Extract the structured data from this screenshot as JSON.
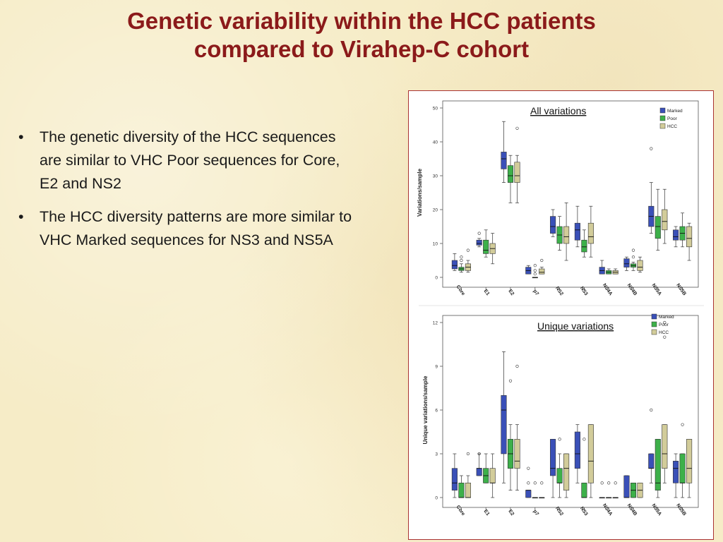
{
  "slide": {
    "title_line1": "Genetic variability within the HCC patients",
    "title_line2": "compared to Virahep-C cohort",
    "bullets": [
      "The genetic diversity of the HCC sequences are similar to VHC Poor sequences for Core, E2 and NS2",
      "The HCC diversity patterns are more similar to VHC Marked sequences for NS3 and NS5A"
    ]
  },
  "colors": {
    "title": "#8b1a1a",
    "marked": "#3a50b8",
    "poor": "#3db04a",
    "hcc": "#d2cc9a",
    "frame_border": "#aa3333"
  },
  "chart_data": [
    {
      "type": "box",
      "title": "All variations",
      "ylabel": "Variations/sample",
      "ylim": [
        0,
        50
      ],
      "yticks": [
        0,
        10,
        20,
        30,
        40,
        50
      ],
      "categories": [
        "Core",
        "E1",
        "E2",
        "p7",
        "NS2",
        "NS3",
        "NS4A",
        "NS4B",
        "NS5A",
        "NS5B"
      ],
      "legend_position": "top-right",
      "series": [
        {
          "name": "Marked",
          "boxes": [
            {
              "min": 2,
              "q1": 2.5,
              "median": 3.5,
              "q3": 5,
              "max": 7,
              "outliers": []
            },
            {
              "min": 9,
              "q1": 9.5,
              "median": 10,
              "q3": 11,
              "max": 11.5,
              "outliers": [
                13
              ]
            },
            {
              "min": 28,
              "q1": 32,
              "median": 35,
              "q3": 37,
              "max": 46,
              "outliers": []
            },
            {
              "min": 1,
              "q1": 1,
              "median": 2,
              "q3": 3,
              "max": 3.5,
              "outliers": []
            },
            {
              "min": 12,
              "q1": 13,
              "median": 15,
              "q3": 18,
              "max": 20,
              "outliers": []
            },
            {
              "min": 9,
              "q1": 11,
              "median": 14,
              "q3": 16,
              "max": 21,
              "outliers": []
            },
            {
              "min": 1,
              "q1": 1,
              "median": 2,
              "q3": 3,
              "max": 5,
              "outliers": []
            },
            {
              "min": 2,
              "q1": 3,
              "median": 4,
              "q3": 5.5,
              "max": 6,
              "outliers": []
            },
            {
              "min": 13,
              "q1": 15,
              "median": 18,
              "q3": 21,
              "max": 28,
              "outliers": [
                38
              ]
            },
            {
              "min": 9,
              "q1": 11,
              "median": 12,
              "q3": 14,
              "max": 15,
              "outliers": []
            }
          ]
        },
        {
          "name": "Poor",
          "boxes": [
            {
              "min": 1.5,
              "q1": 2,
              "median": 2.5,
              "q3": 3,
              "max": 4,
              "outliers": [
                5,
                6
              ]
            },
            {
              "min": 6,
              "q1": 7,
              "median": 8,
              "q3": 11,
              "max": 14,
              "outliers": []
            },
            {
              "min": 22,
              "q1": 28,
              "median": 30,
              "q3": 33,
              "max": 36,
              "outliers": []
            },
            {
              "min": 0,
              "q1": 0,
              "median": 0,
              "q3": 0,
              "max": 0,
              "outliers": [
                1,
                2,
                3.5
              ]
            },
            {
              "min": 8,
              "q1": 10,
              "median": 12.5,
              "q3": 15,
              "max": 18,
              "outliers": []
            },
            {
              "min": 6,
              "q1": 7.5,
              "median": 9,
              "q3": 11,
              "max": 14,
              "outliers": []
            },
            {
              "min": 1,
              "q1": 1,
              "median": 1.5,
              "q3": 2,
              "max": 2.5,
              "outliers": []
            },
            {
              "min": 2,
              "q1": 3,
              "median": 3.5,
              "q3": 4,
              "max": 4.5,
              "outliers": [
                6,
                8
              ]
            },
            {
              "min": 8,
              "q1": 11.5,
              "median": 15,
              "q3": 18,
              "max": 26,
              "outliers": []
            },
            {
              "min": 9,
              "q1": 11,
              "median": 13,
              "q3": 15,
              "max": 19,
              "outliers": []
            }
          ]
        },
        {
          "name": "HCC",
          "boxes": [
            {
              "min": 1.5,
              "q1": 2,
              "median": 3,
              "q3": 4,
              "max": 5,
              "outliers": [
                8
              ]
            },
            {
              "min": 4,
              "q1": 7,
              "median": 8.5,
              "q3": 10,
              "max": 13,
              "outliers": []
            },
            {
              "min": 22,
              "q1": 28,
              "median": 30,
              "q3": 34,
              "max": 36,
              "outliers": [
                44
              ]
            },
            {
              "min": 1,
              "q1": 1,
              "median": 1.5,
              "q3": 2.5,
              "max": 3,
              "outliers": [
                5
              ]
            },
            {
              "min": 5,
              "q1": 10,
              "median": 12,
              "q3": 15,
              "max": 22,
              "outliers": []
            },
            {
              "min": 6,
              "q1": 10,
              "median": 12,
              "q3": 16,
              "max": 21,
              "outliers": []
            },
            {
              "min": 1,
              "q1": 1,
              "median": 1.5,
              "q3": 2,
              "max": 2.5,
              "outliers": []
            },
            {
              "min": 1.5,
              "q1": 2,
              "median": 3,
              "q3": 5,
              "max": 6,
              "outliers": []
            },
            {
              "min": 10,
              "q1": 14,
              "median": 16.5,
              "q3": 20,
              "max": 26,
              "outliers": []
            },
            {
              "min": 5,
              "q1": 9,
              "median": 11.5,
              "q3": 15,
              "max": 16,
              "outliers": []
            }
          ]
        }
      ]
    },
    {
      "type": "box",
      "title": "Unique variations",
      "ylabel": "Unique variations/sample",
      "ylim": [
        0,
        12
      ],
      "yticks": [
        0,
        3,
        6,
        9,
        12
      ],
      "categories": [
        "Core",
        "E1",
        "E2",
        "p7",
        "NS2",
        "NS3",
        "NS4A",
        "NS4B",
        "NS5A",
        "NS5B"
      ],
      "legend_position": "top-right",
      "series": [
        {
          "name": "Marked",
          "boxes": [
            {
              "min": 0,
              "q1": 0.5,
              "median": 1,
              "q3": 2,
              "max": 3,
              "outliers": []
            },
            {
              "min": 1.5,
              "q1": 1.5,
              "median": 2,
              "q3": 2,
              "max": 3,
              "outliers": [
                3
              ]
            },
            {
              "min": 1,
              "q1": 3,
              "median": 6,
              "q3": 7,
              "max": 10,
              "outliers": []
            },
            {
              "min": 0,
              "q1": 0,
              "median": 0.5,
              "q3": 0.5,
              "max": 0.5,
              "outliers": [
                1,
                2
              ]
            },
            {
              "min": 0,
              "q1": 1.5,
              "median": 2,
              "q3": 4,
              "max": 4,
              "outliers": []
            },
            {
              "min": 1,
              "q1": 2,
              "median": 3,
              "q3": 4.5,
              "max": 5,
              "outliers": []
            },
            {
              "min": 0,
              "q1": 0,
              "median": 0,
              "q3": 0,
              "max": 0,
              "outliers": [
                1
              ]
            },
            {
              "min": 0,
              "q1": 0,
              "median": 0,
              "q3": 1.5,
              "max": 1.5,
              "outliers": []
            },
            {
              "min": 1,
              "q1": 2,
              "median": 2,
              "q3": 3,
              "max": 3,
              "outliers": [
                6
              ]
            },
            {
              "min": 0,
              "q1": 1,
              "median": 2,
              "q3": 2.5,
              "max": 3,
              "outliers": []
            }
          ]
        },
        {
          "name": "Poor",
          "boxes": [
            {
              "min": 0,
              "q1": 0,
              "median": 0,
              "q3": 1,
              "max": 1.5,
              "outliers": []
            },
            {
              "min": 1,
              "q1": 1,
              "median": 1.5,
              "q3": 2,
              "max": 3,
              "outliers": []
            },
            {
              "min": 0.5,
              "q1": 2,
              "median": 3,
              "q3": 4,
              "max": 5,
              "outliers": [
                8
              ]
            },
            {
              "min": 0,
              "q1": 0,
              "median": 0,
              "q3": 0,
              "max": 0,
              "outliers": [
                1
              ]
            },
            {
              "min": 0,
              "q1": 1,
              "median": 1,
              "q3": 2,
              "max": 3,
              "outliers": [
                4
              ]
            },
            {
              "min": 0,
              "q1": 0,
              "median": 0,
              "q3": 1,
              "max": 1,
              "outliers": [
                4
              ]
            },
            {
              "min": 0,
              "q1": 0,
              "median": 0,
              "q3": 0,
              "max": 0,
              "outliers": [
                1
              ]
            },
            {
              "min": 0,
              "q1": 0,
              "median": 0.5,
              "q3": 1,
              "max": 1,
              "outliers": []
            },
            {
              "min": 0,
              "q1": 0.5,
              "median": 1,
              "q3": 4,
              "max": 4,
              "outliers": []
            },
            {
              "min": 0,
              "q1": 1,
              "median": 1,
              "q3": 3,
              "max": 3,
              "outliers": [
                5
              ]
            }
          ]
        },
        {
          "name": "HCC",
          "boxes": [
            {
              "min": 0,
              "q1": 0,
              "median": 0,
              "q3": 1,
              "max": 1.5,
              "outliers": [
                3
              ]
            },
            {
              "min": 0,
              "q1": 1,
              "median": 1,
              "q3": 2,
              "max": 3,
              "outliers": []
            },
            {
              "min": 0.5,
              "q1": 2,
              "median": 2.5,
              "q3": 4,
              "max": 5,
              "outliers": [
                9
              ]
            },
            {
              "min": 0,
              "q1": 0,
              "median": 0,
              "q3": 0,
              "max": 0,
              "outliers": [
                1
              ]
            },
            {
              "min": 0,
              "q1": 0.5,
              "median": 2,
              "q3": 3,
              "max": 3,
              "outliers": []
            },
            {
              "min": 0,
              "q1": 1,
              "median": 2.5,
              "q3": 5,
              "max": 5,
              "outliers": []
            },
            {
              "min": 0,
              "q1": 0,
              "median": 0,
              "q3": 0,
              "max": 0,
              "outliers": [
                1
              ]
            },
            {
              "min": 0,
              "q1": 0,
              "median": 0.5,
              "q3": 1,
              "max": 1,
              "outliers": []
            },
            {
              "min": 1,
              "q1": 2,
              "median": 3,
              "q3": 5,
              "max": 5,
              "outliers": [
                11,
                12
              ]
            },
            {
              "min": 0,
              "q1": 1,
              "median": 2,
              "q3": 4,
              "max": 4,
              "outliers": []
            }
          ]
        }
      ]
    }
  ]
}
